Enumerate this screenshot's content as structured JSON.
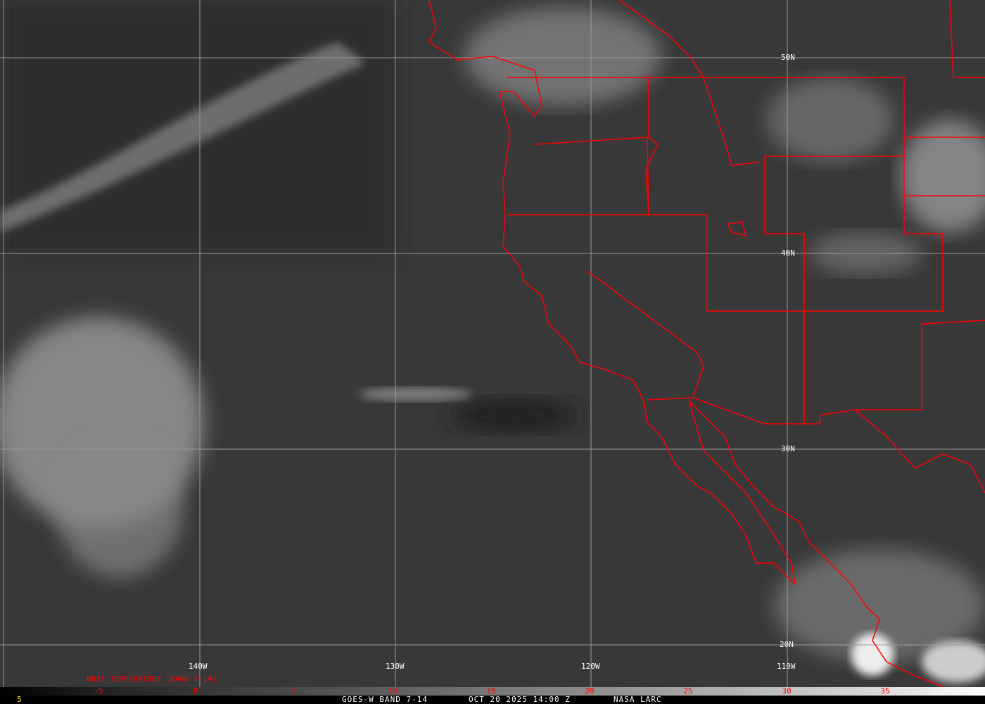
{
  "map": {
    "title": "GOES-W BAND 7-14",
    "datetime": "OCT 20 2025 14:00 Z",
    "credit": "NASA LARC",
    "legend_title": "BRIT TEMPERATURE (BAND 7-14)",
    "corner_value": "5",
    "lon_labels": [
      "140W",
      "130W",
      "120W",
      "110W"
    ],
    "lat_labels": [
      "50N",
      "40N",
      "30N",
      "20N"
    ],
    "colorbar_ticks": [
      "-5",
      "0",
      "5",
      "10",
      "15",
      "20",
      "25",
      "30",
      "35"
    ],
    "border_color": "#ff0000",
    "grid_color": "#9a9a9a"
  }
}
